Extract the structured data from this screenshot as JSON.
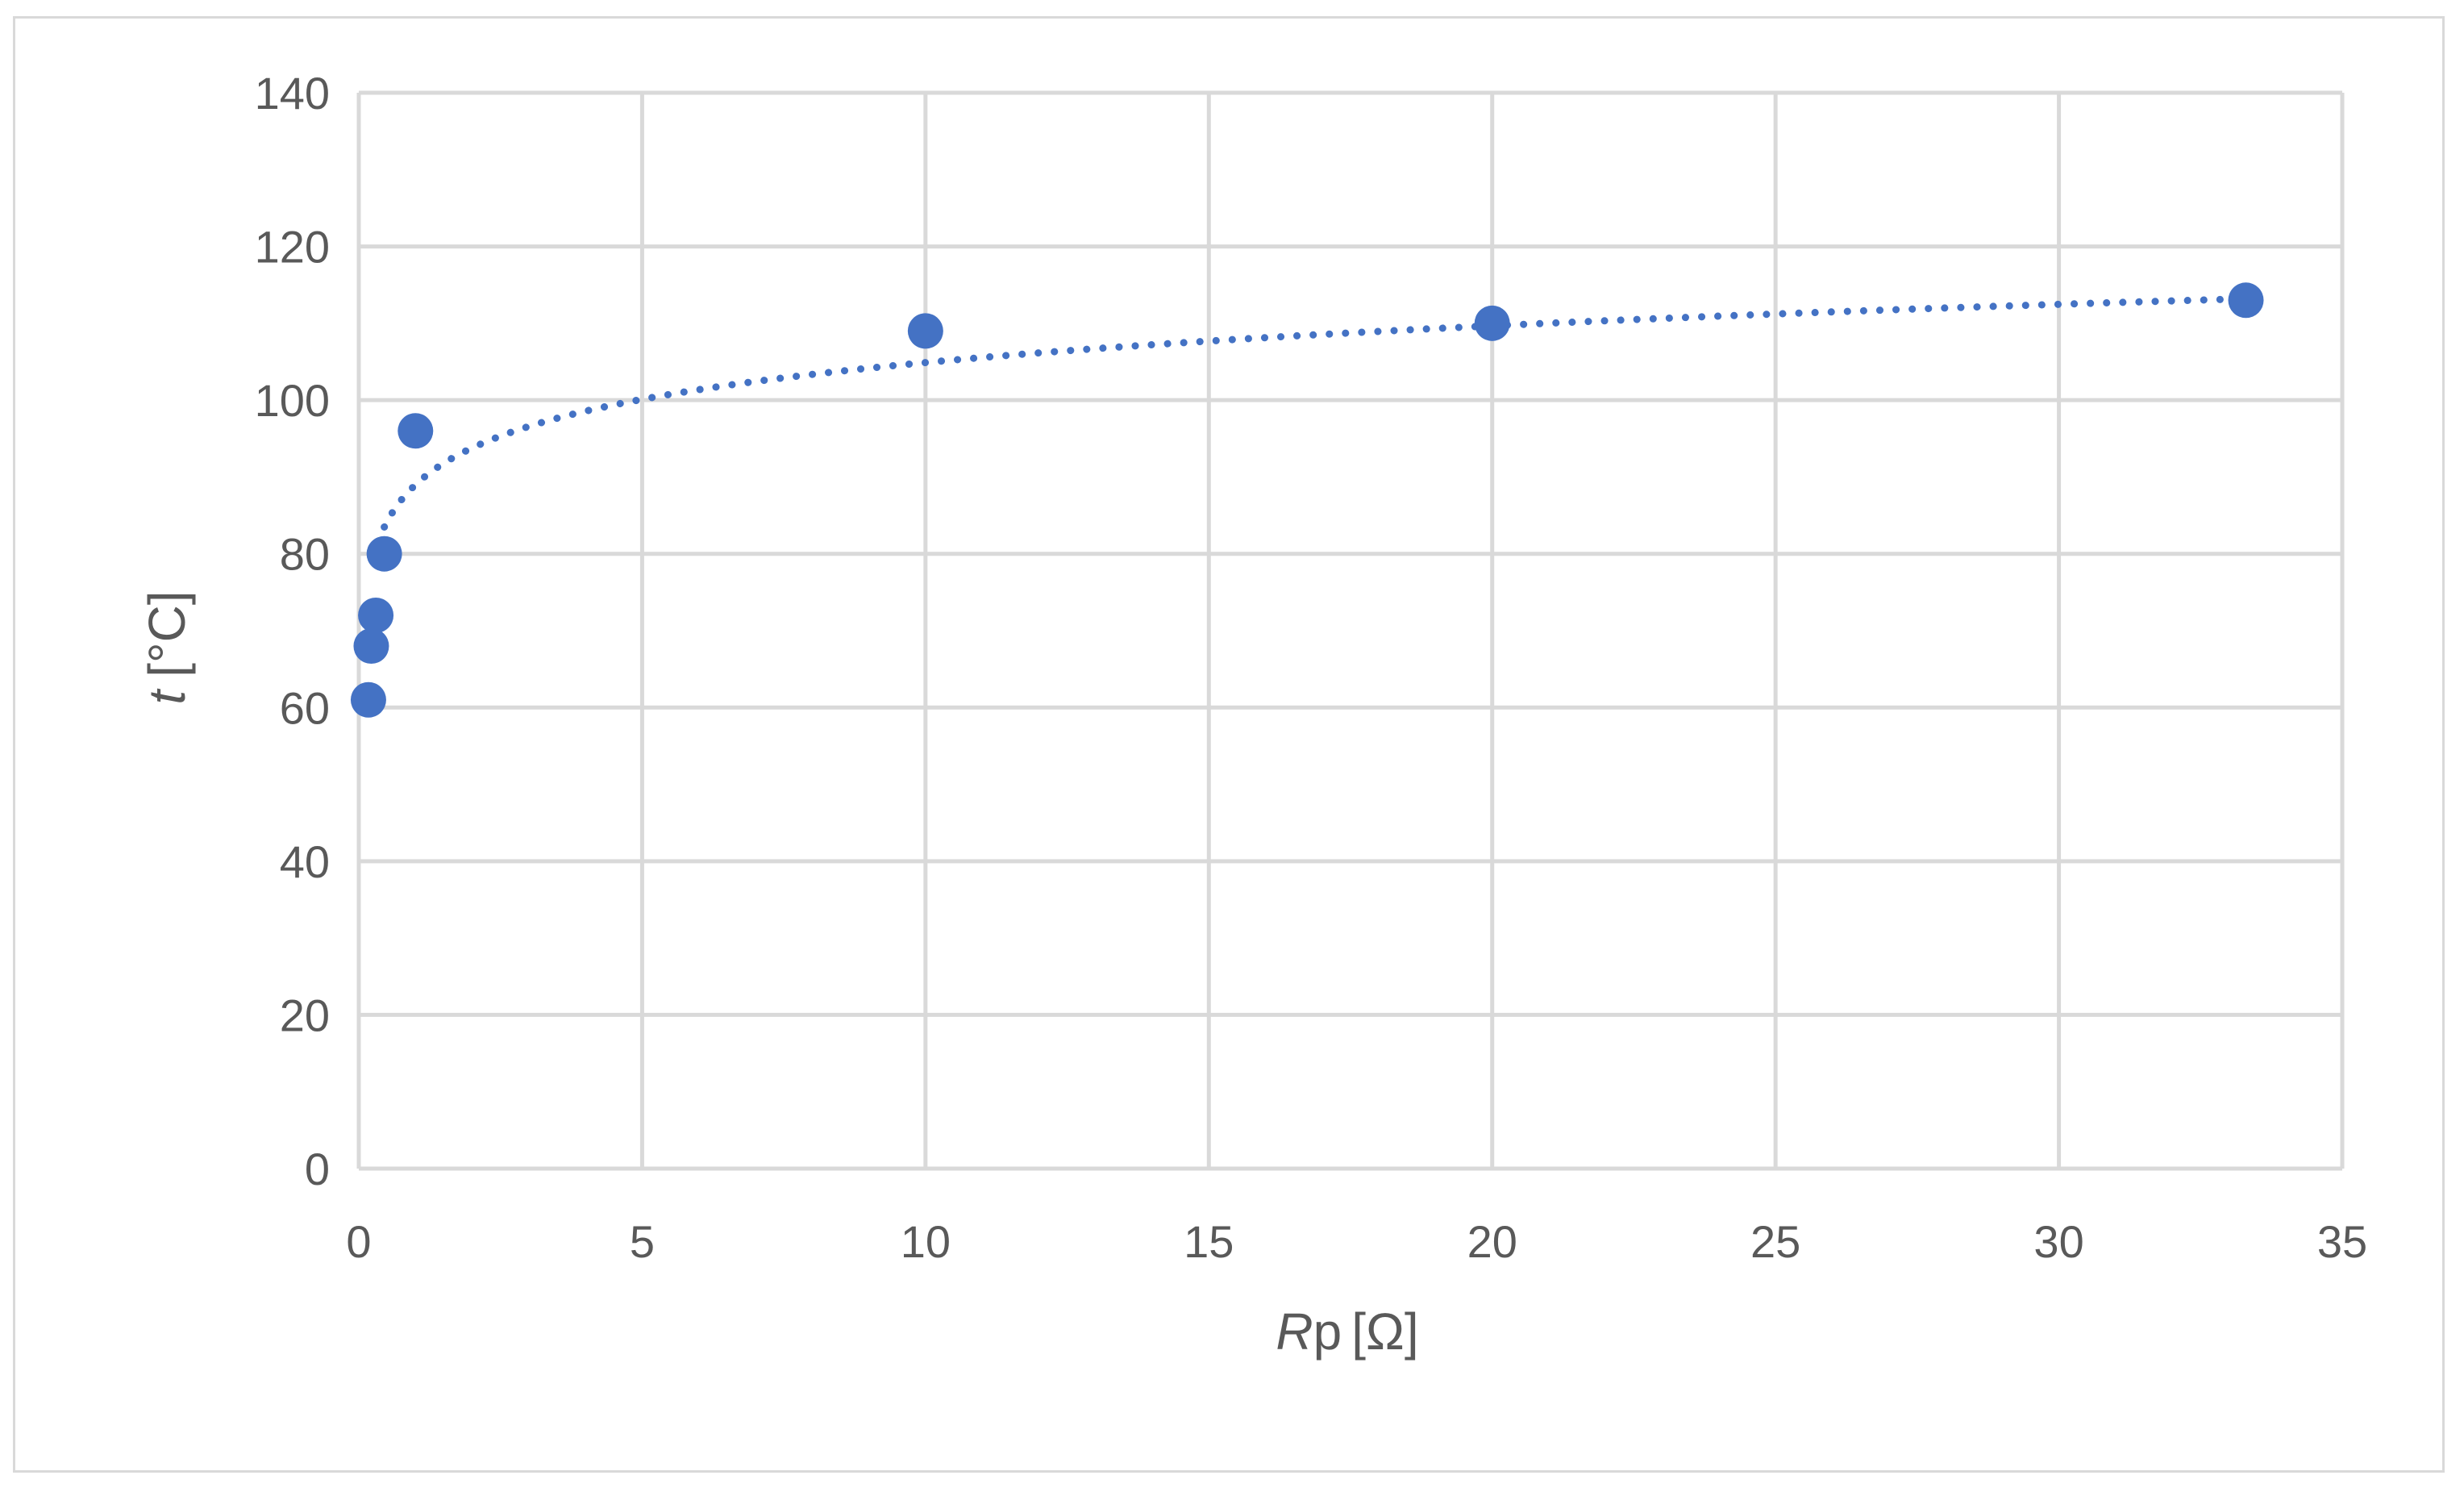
{
  "chart_data": {
    "type": "scatter",
    "title": "",
    "xlabel": {
      "symbol": "R",
      "subscript": "p",
      "unit": "[Ω]"
    },
    "ylabel": {
      "symbol": "t",
      "unit": "[°C]"
    },
    "xlim": [
      0,
      35
    ],
    "ylim": [
      0,
      140
    ],
    "xticks": [
      0,
      5,
      10,
      15,
      20,
      25,
      30,
      35
    ],
    "yticks": [
      0,
      20,
      40,
      60,
      80,
      100,
      120,
      140
    ],
    "xtick_labels": [
      "0",
      "5",
      "10",
      "15",
      "20",
      "25",
      "30",
      "35"
    ],
    "ytick_labels": [
      "0",
      "20",
      "40",
      "60",
      "80",
      "100",
      "120",
      "140"
    ],
    "grid": true,
    "legend": "none",
    "series": [
      {
        "x": [
          0.17,
          0.22,
          0.3,
          0.45,
          1.0,
          10.0,
          20.0,
          33.3
        ],
        "y": [
          61,
          68,
          72,
          80,
          96,
          109,
          110,
          113
        ],
        "marker": "circle",
        "color": "#4472c4"
      }
    ],
    "trendline": {
      "kind": "logarithmic",
      "style": "dotted",
      "color": "#4472c4",
      "x_range": [
        0.45,
        33.0
      ],
      "a": 6.9,
      "b": 89.0
    }
  }
}
